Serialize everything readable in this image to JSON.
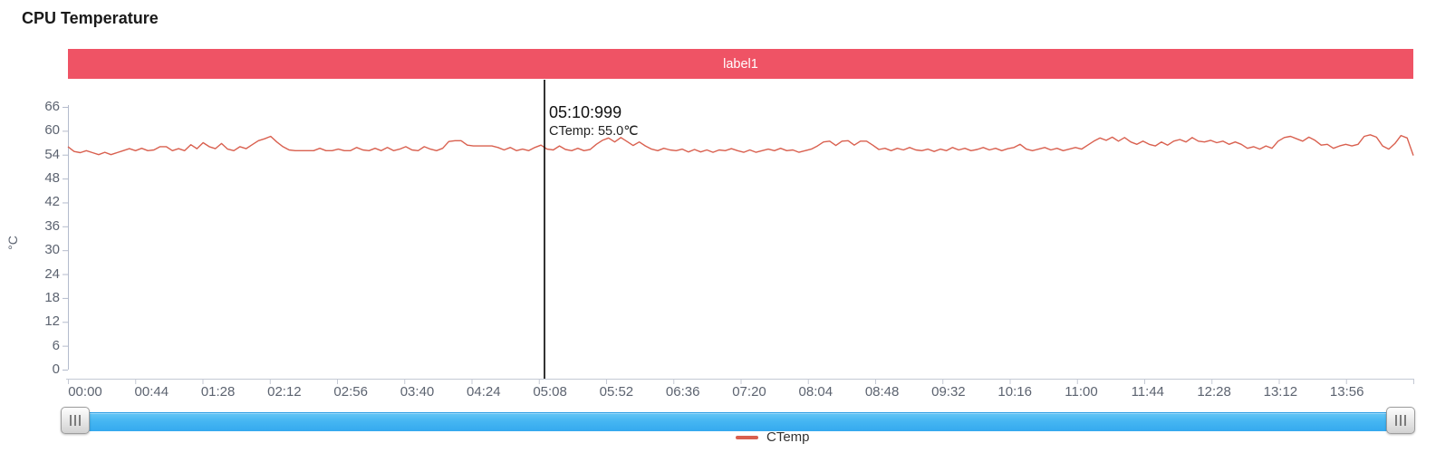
{
  "page": {
    "title": "CPU Temperature"
  },
  "banner": {
    "label": "label1",
    "background": "#ef5365",
    "text_color": "#ffffff"
  },
  "tooltip": {
    "time": "05:10:999",
    "label": "CTemp: 55.0℃"
  },
  "legend": {
    "items": [
      {
        "label": "CTemp",
        "color": "#d9604f"
      }
    ]
  },
  "scrollbar": {
    "color": "#45b6f2",
    "top_edge_color": "#2e9fe5"
  },
  "axis_colors": {
    "line": "#b4bbcc",
    "x_line": "#c4c9d4",
    "label": "#5c6370"
  },
  "chart_data": {
    "type": "line",
    "title": "CPU Temperature",
    "xlabel": "",
    "ylabel": "°C",
    "ylim": [
      0,
      66
    ],
    "grid": false,
    "legend_position": "bottom",
    "y_ticks": [
      0,
      6,
      12,
      18,
      24,
      30,
      36,
      42,
      48,
      54,
      60,
      66
    ],
    "x_tick_labels": [
      "00:00",
      "00:44",
      "01:28",
      "02:12",
      "02:56",
      "03:40",
      "04:24",
      "05:08",
      "05:52",
      "06:36",
      "07:20",
      "08:04",
      "08:48",
      "09:32",
      "10:16",
      "11:00",
      "11:44",
      "12:28",
      "13:12",
      "13:56"
    ],
    "cursor": {
      "x_label": "05:10:999",
      "series": "CTemp",
      "value": 55.0,
      "value_text": "CTemp: 55.0℃"
    },
    "series": [
      {
        "name": "CTemp",
        "color": "#d9604f",
        "values": [
          56,
          54.8,
          54.5,
          55,
          54.5,
          54,
          54.6,
          54,
          54.5,
          55,
          55.5,
          55,
          55.6,
          55,
          55.2,
          56,
          56,
          55,
          55.5,
          55,
          56.5,
          55.5,
          57,
          56,
          55.5,
          56.8,
          55.4,
          55,
          56,
          55.5,
          56.5,
          57.5,
          58,
          58.6,
          57.2,
          56,
          55.2,
          55,
          55,
          55,
          55,
          55.6,
          55,
          55,
          55.4,
          55,
          55,
          55.8,
          55.2,
          55,
          55.6,
          55,
          55.8,
          55,
          55.4,
          56,
          55.2,
          55,
          56,
          55.4,
          55,
          55.6,
          57.3,
          57.5,
          57.5,
          56.4,
          56.2,
          56.2,
          56.2,
          56.2,
          55.8,
          55.2,
          55.8,
          55,
          55.4,
          55,
          55.8,
          56.4,
          55.4,
          55.2,
          56.2,
          55.3,
          55,
          55.6,
          55,
          55.3,
          56.6,
          57.6,
          58.2,
          57.2,
          58.3,
          57.3,
          56.3,
          57.2,
          56.2,
          55.4,
          55,
          55.6,
          55.2,
          55,
          55.4,
          54.7,
          55.3,
          54.7,
          55.2,
          54.6,
          55.2,
          55,
          55.5,
          55,
          54.6,
          55.2,
          54.6,
          55,
          55.4,
          55,
          55.6,
          55,
          55.2,
          54.6,
          55,
          55.4,
          56.2,
          57.2,
          57.4,
          56.3,
          57.4,
          57.5,
          56.4,
          57.4,
          57.4,
          56.4,
          55.3,
          55.6,
          55,
          55.6,
          55.2,
          55.8,
          55.2,
          55,
          55.4,
          54.8,
          55.4,
          55,
          55.8,
          55.2,
          55.6,
          55,
          55.3,
          55.8,
          55.2,
          55.6,
          55,
          55.5,
          55.8,
          56.6,
          55.4,
          55,
          55.4,
          55.8,
          55.2,
          55.6,
          55,
          55.4,
          55.8,
          55.4,
          56.4,
          57.4,
          58.2,
          57.6,
          58.4,
          57.4,
          58.3,
          57.2,
          56.6,
          57.4,
          56.6,
          56.2,
          57.2,
          56.4,
          57.4,
          57.8,
          57.2,
          58.3,
          57.4,
          57.2,
          57.6,
          57,
          57.4,
          56.6,
          57.2,
          56.6,
          55.6,
          56,
          55.4,
          56.2,
          55.6,
          57.4,
          58.3,
          58.6,
          58,
          57.4,
          58.4,
          57.6,
          56.4,
          56.6,
          55.6,
          56.2,
          56.6,
          56.2,
          56.6,
          58.6,
          59,
          58.4,
          56.2,
          55.4,
          56.8,
          58.8,
          58.2,
          53.8
        ]
      }
    ]
  }
}
